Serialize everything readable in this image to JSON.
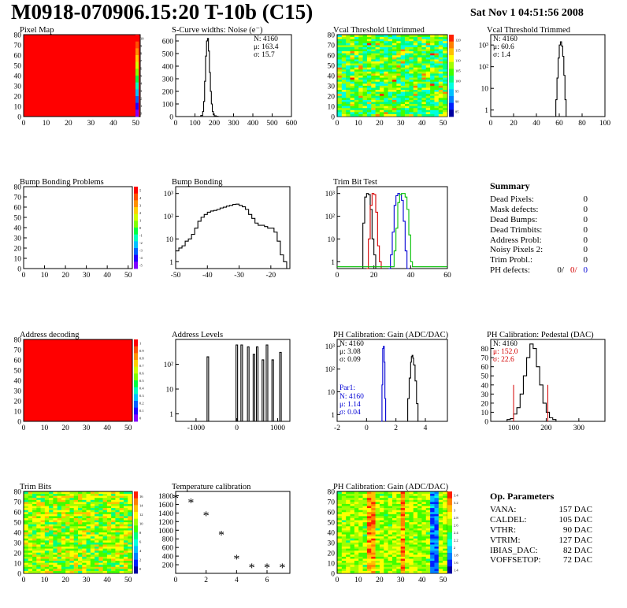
{
  "header": {
    "title": "M0918-070906.15:20 T-10b (C15)",
    "date": "Sat Nov  1 04:51:56 2008"
  },
  "summary": {
    "title": "Summary",
    "rows": [
      {
        "label": "Dead Pixels:",
        "value": "0"
      },
      {
        "label": "Mask defects:",
        "value": "0"
      },
      {
        "label": "Dead Bumps:",
        "value": "0"
      },
      {
        "label": "Dead Trimbits:",
        "value": "0"
      },
      {
        "label": "Address Probl:",
        "value": "0"
      },
      {
        "label": "Noisy Pixels 2:",
        "value": "0"
      },
      {
        "label": "Trim Probl.:",
        "value": "0"
      }
    ],
    "ph_defects": {
      "label": "PH defects:",
      "values": [
        "0/",
        "0/",
        "0"
      ],
      "colors": [
        "#000000",
        "#d40000",
        "#0000d4"
      ]
    }
  },
  "op_params": {
    "title": "Op. Parameters",
    "rows": [
      {
        "label": "VANA:",
        "value": "157 DAC"
      },
      {
        "label": "CALDEL:",
        "value": "105 DAC"
      },
      {
        "label": "VTHR:",
        "value": "90 DAC"
      },
      {
        "label": "VTRIM:",
        "value": "127 DAC"
      },
      {
        "label": "IBIAS_DAC:",
        "value": "82 DAC"
      },
      {
        "label": "VOFFSETOP:",
        "value": "72 DAC"
      }
    ]
  },
  "chart_data": [
    {
      "id": "pixel-map",
      "type": "heatmap",
      "title": "Pixel Map",
      "fill": "uniform-red",
      "x_ticks": [
        "0",
        "10",
        "20",
        "30",
        "40",
        "50"
      ],
      "y_ticks": [
        "0",
        "10",
        "20",
        "30",
        "40",
        "50",
        "60",
        "70",
        "80"
      ],
      "xlim": [
        0,
        52
      ],
      "ylim": [
        0,
        80
      ],
      "palette_ticks": [
        "10",
        "9",
        "8",
        "7",
        "6",
        "5",
        "4",
        "3",
        "2",
        "1",
        "0"
      ]
    },
    {
      "id": "scurve",
      "type": "bar",
      "title": "S-Curve widths: Noise (e⁻)",
      "x_ticks": [
        "0",
        "100",
        "200",
        "300",
        "400",
        "500",
        "600"
      ],
      "xlim": [
        0,
        600
      ],
      "y_ticks": [
        "0",
        "100",
        "200",
        "300",
        "400",
        "500",
        "600"
      ],
      "ylim": [
        0,
        650
      ],
      "log": false,
      "stats": [
        "N: 4160",
        "μ: 163.4",
        "σ: 15.7"
      ],
      "series": [
        {
          "color": "#000000",
          "x": [
            120,
            130,
            140,
            145,
            150,
            155,
            160,
            165,
            170,
            175,
            180,
            185,
            190,
            195,
            200,
            210,
            220
          ],
          "y": [
            0,
            8,
            40,
            120,
            280,
            480,
            600,
            620,
            520,
            350,
            200,
            100,
            40,
            15,
            6,
            2,
            0
          ]
        }
      ]
    },
    {
      "id": "vcal-untrimmed",
      "type": "heatmap",
      "title": "Vcal Threshold Untrimmed",
      "fill": "noise-cyan-green",
      "x_ticks": [
        "0",
        "10",
        "20",
        "30",
        "40",
        "50"
      ],
      "y_ticks": [
        "0",
        "10",
        "20",
        "30",
        "40",
        "50",
        "60",
        "70",
        "80"
      ],
      "xlim": [
        0,
        52
      ],
      "ylim": [
        0,
        80
      ],
      "palette_ticks": [
        "120",
        "115",
        "110",
        "105",
        "100",
        "95",
        "90",
        "85"
      ]
    },
    {
      "id": "vcal-trimmed",
      "type": "bar",
      "title": "Vcal Threshold Trimmed",
      "x_ticks": [
        "0",
        "20",
        "40",
        "60",
        "80",
        "100"
      ],
      "xlim": [
        0,
        100
      ],
      "y_ticks": [
        "1",
        "10",
        "10²",
        "10³"
      ],
      "ylim": [
        0.5,
        3000
      ],
      "log": true,
      "stats": [
        "N: 4160",
        "μ: 60.6",
        "σ:  1.4"
      ],
      "series": [
        {
          "color": "#000000",
          "x": [
            56,
            57,
            58,
            59,
            60,
            61,
            62,
            63,
            64,
            65,
            66
          ],
          "y": [
            0,
            3,
            30,
            250,
            1000,
            1400,
            900,
            300,
            40,
            3,
            0
          ]
        }
      ]
    },
    {
      "id": "bump-problems",
      "type": "heatmap",
      "title": "Bump Bonding Problems",
      "fill": "empty",
      "x_ticks": [
        "0",
        "10",
        "20",
        "30",
        "40",
        "50"
      ],
      "y_ticks": [
        "0",
        "10",
        "20",
        "30",
        "40",
        "50",
        "60",
        "70",
        "80"
      ],
      "xlim": [
        0,
        52
      ],
      "ylim": [
        0,
        80
      ],
      "palette_ticks": [
        "5",
        "4",
        "3",
        "2",
        "1",
        "0",
        "-1",
        "-2",
        "-3",
        "-4",
        "-5"
      ]
    },
    {
      "id": "bump-bonding",
      "type": "bar",
      "title": "Bump Bonding",
      "x_ticks": [
        "-50",
        "-40",
        "-30",
        "-20"
      ],
      "xlim": [
        -50,
        -14
      ],
      "y_ticks": [
        "1",
        "10",
        "10²",
        "10³"
      ],
      "ylim": [
        0.5,
        2000
      ],
      "log": true,
      "series": [
        {
          "color": "#000000",
          "x": [
            -50,
            -49,
            -48,
            -47,
            -46,
            -45,
            -44,
            -43,
            -42,
            -41,
            -40,
            -39,
            -38,
            -37,
            -36,
            -35,
            -34,
            -33,
            -32,
            -31,
            -30,
            -29,
            -28,
            -27,
            -26,
            -25,
            -24,
            -23,
            -22,
            -21,
            -20,
            -19,
            -18,
            -17,
            -16,
            -15
          ],
          "y": [
            3,
            4,
            5,
            8,
            10,
            16,
            30,
            60,
            90,
            120,
            150,
            170,
            180,
            200,
            230,
            250,
            280,
            300,
            330,
            340,
            300,
            260,
            200,
            120,
            80,
            50,
            40,
            40,
            35,
            30,
            30,
            20,
            8,
            2,
            1,
            0
          ]
        }
      ]
    },
    {
      "id": "trim-bit-test",
      "type": "bar",
      "title": "Trim Bit Test",
      "x_ticks": [
        "0",
        "20",
        "40",
        "60"
      ],
      "xlim": [
        0,
        60
      ],
      "y_ticks": [
        "1",
        "10",
        "10²",
        "10³"
      ],
      "ylim": [
        0.5,
        2000
      ],
      "log": true,
      "series": [
        {
          "name": "bit1",
          "color": "#000000",
          "x": [
            13,
            14,
            15,
            16,
            17,
            18,
            19,
            20,
            21,
            22
          ],
          "y": [
            0,
            50,
            700,
            1000,
            900,
            200,
            10,
            2,
            0,
            0
          ]
        },
        {
          "name": "bit2",
          "color": "#d40000",
          "x": [
            16,
            17,
            18,
            19,
            20,
            21,
            22,
            23,
            24
          ],
          "y": [
            0,
            10,
            300,
            1000,
            900,
            150,
            5,
            1,
            0
          ]
        },
        {
          "name": "bit3",
          "color": "#0000d4",
          "x": [
            28,
            29,
            30,
            31,
            32,
            33,
            34,
            35,
            36,
            37,
            38,
            39
          ],
          "y": [
            0,
            2,
            20,
            300,
            800,
            1000,
            900,
            500,
            60,
            3,
            0,
            0
          ]
        },
        {
          "name": "bit4",
          "color": "#00c000",
          "x": [
            0,
            30,
            31,
            32,
            33,
            34,
            35,
            36,
            37,
            38,
            39,
            40,
            41,
            60
          ],
          "y": [
            0.6,
            0.6,
            3,
            30,
            400,
            900,
            1000,
            1000,
            700,
            200,
            15,
            1,
            0.6,
            0.6
          ]
        }
      ]
    },
    {
      "id": "address-decoding",
      "type": "heatmap",
      "title": "Address decoding",
      "fill": "uniform-red",
      "x_ticks": [
        "0",
        "10",
        "20",
        "30",
        "40",
        "50"
      ],
      "y_ticks": [
        "0",
        "10",
        "20",
        "30",
        "40",
        "50",
        "60",
        "70",
        "80"
      ],
      "xlim": [
        0,
        52
      ],
      "ylim": [
        0,
        80
      ],
      "palette_ticks": [
        "1",
        "0.9",
        "0.8",
        "0.7",
        "0.6",
        "0.5",
        "0.4",
        "0.3",
        "0.2",
        "0.1",
        "0"
      ]
    },
    {
      "id": "address-levels",
      "type": "bar",
      "title": "Address Levels",
      "x_ticks": [
        "-1000",
        "0",
        "1000"
      ],
      "xlim": [
        -1500,
        1300
      ],
      "y_ticks": [
        "1",
        "10",
        "10²"
      ],
      "ylim": [
        0.5,
        1000
      ],
      "log": true,
      "series": [
        {
          "color": "#000000",
          "spikes": [
            [
              -730,
              200
            ],
            [
              -20,
              600
            ],
            [
              100,
              600
            ],
            [
              260,
              500
            ],
            [
              400,
              250
            ],
            [
              480,
              500
            ],
            [
              620,
              150
            ],
            [
              720,
              600
            ],
            [
              860,
              150
            ],
            [
              1050,
              300
            ]
          ]
        }
      ]
    },
    {
      "id": "ph-gain",
      "type": "bar",
      "title": "PH Calibration: Gain (ADC/DAC)",
      "x_ticks": [
        "-2",
        "0",
        "2",
        "4"
      ],
      "xlim": [
        -2,
        5.5
      ],
      "y_ticks": [
        "1",
        "10",
        "10²",
        "10³"
      ],
      "ylim": [
        0.5,
        2000
      ],
      "log": true,
      "stats": [
        "N: 4160",
        "μ: 3.08",
        "σ: 0.09"
      ],
      "par": {
        "label": "Par1:",
        "stats": [
          "N: 4160",
          "μ: 1.14",
          "σ: 0.04"
        ],
        "color": "#0000d4"
      },
      "series": [
        {
          "color": "#0000d4",
          "x": [
            1.0,
            1.05,
            1.1,
            1.15,
            1.2,
            1.25,
            1.3
          ],
          "y": [
            0,
            20,
            800,
            1000,
            200,
            5,
            0
          ]
        },
        {
          "color": "#000000",
          "x": [
            2.7,
            2.8,
            2.9,
            3.0,
            3.05,
            3.1,
            3.15,
            3.2,
            3.3,
            3.4,
            3.5
          ],
          "y": [
            0,
            5,
            40,
            200,
            350,
            400,
            300,
            150,
            30,
            3,
            0
          ]
        }
      ]
    },
    {
      "id": "ph-pedestal",
      "type": "bar",
      "title": "PH Calibration: Pedestal (DAC)",
      "x_ticks": [
        "100",
        "200",
        "300"
      ],
      "xlim": [
        30,
        380
      ],
      "y_ticks": [
        "0",
        "10",
        "20",
        "30",
        "40",
        "50",
        "60",
        "70",
        "80"
      ],
      "ylim": [
        0,
        90
      ],
      "log": false,
      "stats": [
        "N: 4160",
        "μ: 152.0",
        "σ: 22.6"
      ],
      "stat_colors": [
        "#000000",
        "#d40000",
        "#d40000"
      ],
      "series": [
        {
          "color": "#000000",
          "x": [
            70,
            80,
            90,
            100,
            110,
            120,
            130,
            140,
            150,
            160,
            170,
            180,
            190,
            200,
            210,
            220,
            230
          ],
          "y": [
            0,
            2,
            3,
            8,
            15,
            30,
            50,
            70,
            85,
            80,
            60,
            40,
            20,
            10,
            4,
            2,
            0
          ]
        }
      ]
    },
    {
      "id": "trim-bits",
      "type": "heatmap",
      "title": "Trim Bits",
      "fill": "noise-green",
      "x_ticks": [
        "0",
        "10",
        "20",
        "30",
        "40",
        "50"
      ],
      "y_ticks": [
        "0",
        "10",
        "20",
        "30",
        "40",
        "50",
        "60",
        "70",
        "80"
      ],
      "xlim": [
        0,
        52
      ],
      "ylim": [
        0,
        80
      ],
      "palette_ticks": [
        "16",
        "14",
        "12",
        "10",
        "8",
        "6",
        "4",
        "2",
        "0"
      ]
    },
    {
      "id": "temperature",
      "type": "scatter",
      "title": "Temperature calibration",
      "x_ticks": [
        "0",
        "2",
        "4",
        "6"
      ],
      "xlim": [
        0,
        7.5
      ],
      "y_ticks": [
        "200",
        "400",
        "600",
        "800",
        "1000",
        "1200",
        "1400",
        "1600",
        "1800"
      ],
      "ylim": [
        0,
        1900
      ],
      "log": false,
      "series": [
        {
          "color": "#000000",
          "x": [
            0,
            1,
            2,
            3,
            4,
            5,
            6,
            7
          ],
          "y": [
            1750,
            1650,
            1350,
            900,
            350,
            150,
            150,
            150
          ]
        }
      ]
    },
    {
      "id": "ph-gain-map",
      "type": "heatmap",
      "title": "PH Calibration: Gain (ADC/DAC)",
      "fill": "stripe-gain",
      "x_ticks": [
        "0",
        "10",
        "20",
        "30",
        "40",
        "50"
      ],
      "y_ticks": [
        "0",
        "10",
        "20",
        "30",
        "40",
        "50",
        "60",
        "70",
        "80"
      ],
      "xlim": [
        0,
        52
      ],
      "ylim": [
        0,
        80
      ],
      "palette_ticks": [
        "3.4",
        "3.2",
        "3",
        "2.8",
        "2.6",
        "2.4",
        "2.2",
        "2",
        "1.8",
        "1.6",
        "1.4"
      ]
    }
  ]
}
